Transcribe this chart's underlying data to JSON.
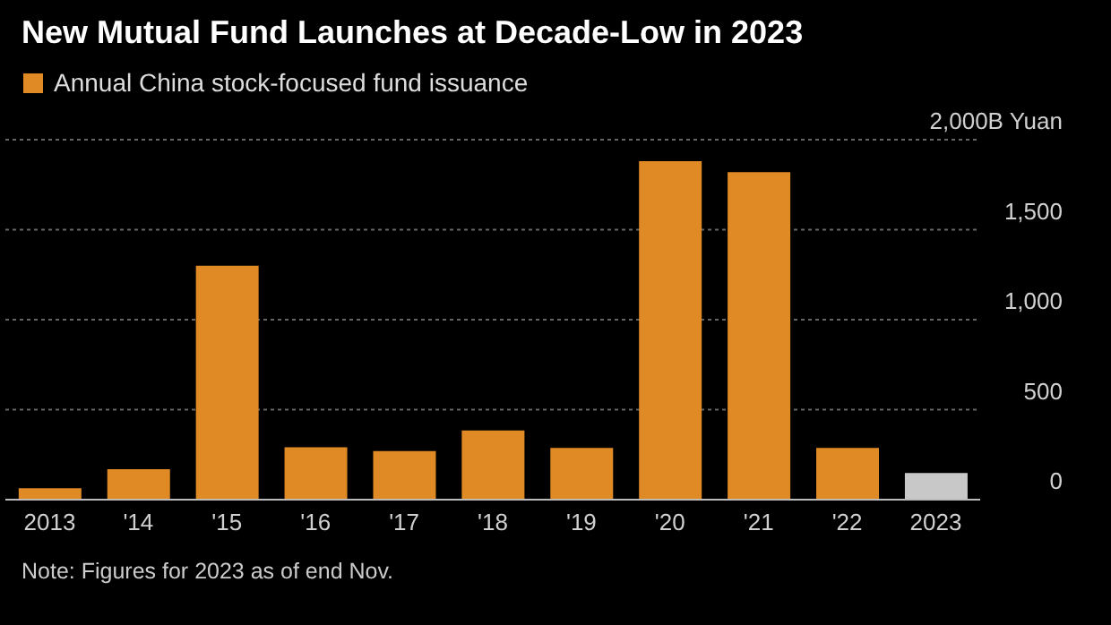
{
  "chart_data": {
    "type": "bar",
    "title": "New Mutual Fund Launches at Decade-Low in 2023",
    "categories": [
      "2013",
      "'14",
      "'15",
      "'16",
      "'17",
      "'18",
      "'19",
      "'20",
      "'21",
      "'22",
      "2023"
    ],
    "series": [
      {
        "name": "Annual China stock-focused fund issuance",
        "color": "#e08a25",
        "colors": [
          "#e08a25",
          "#e08a25",
          "#e08a25",
          "#e08a25",
          "#e08a25",
          "#e08a25",
          "#e08a25",
          "#e08a25",
          "#e08a25",
          "#e08a25",
          "#c8c8c8"
        ],
        "values": [
          63,
          169,
          1300,
          291,
          270,
          384,
          287,
          1880,
          1820,
          287,
          148
        ]
      }
    ],
    "ylim": [
      0,
      2000
    ],
    "yticks": [
      0,
      500,
      {
        "value": 1000,
        "label": "1,000"
      },
      {
        "value": 1500,
        "label": "1,500"
      },
      {
        "value": 2000,
        "label": "2,000B Yuan"
      }
    ],
    "grid": "y",
    "legend": "top left",
    "annotations": [
      "Note: Figures for 2023 as of end Nov."
    ]
  }
}
